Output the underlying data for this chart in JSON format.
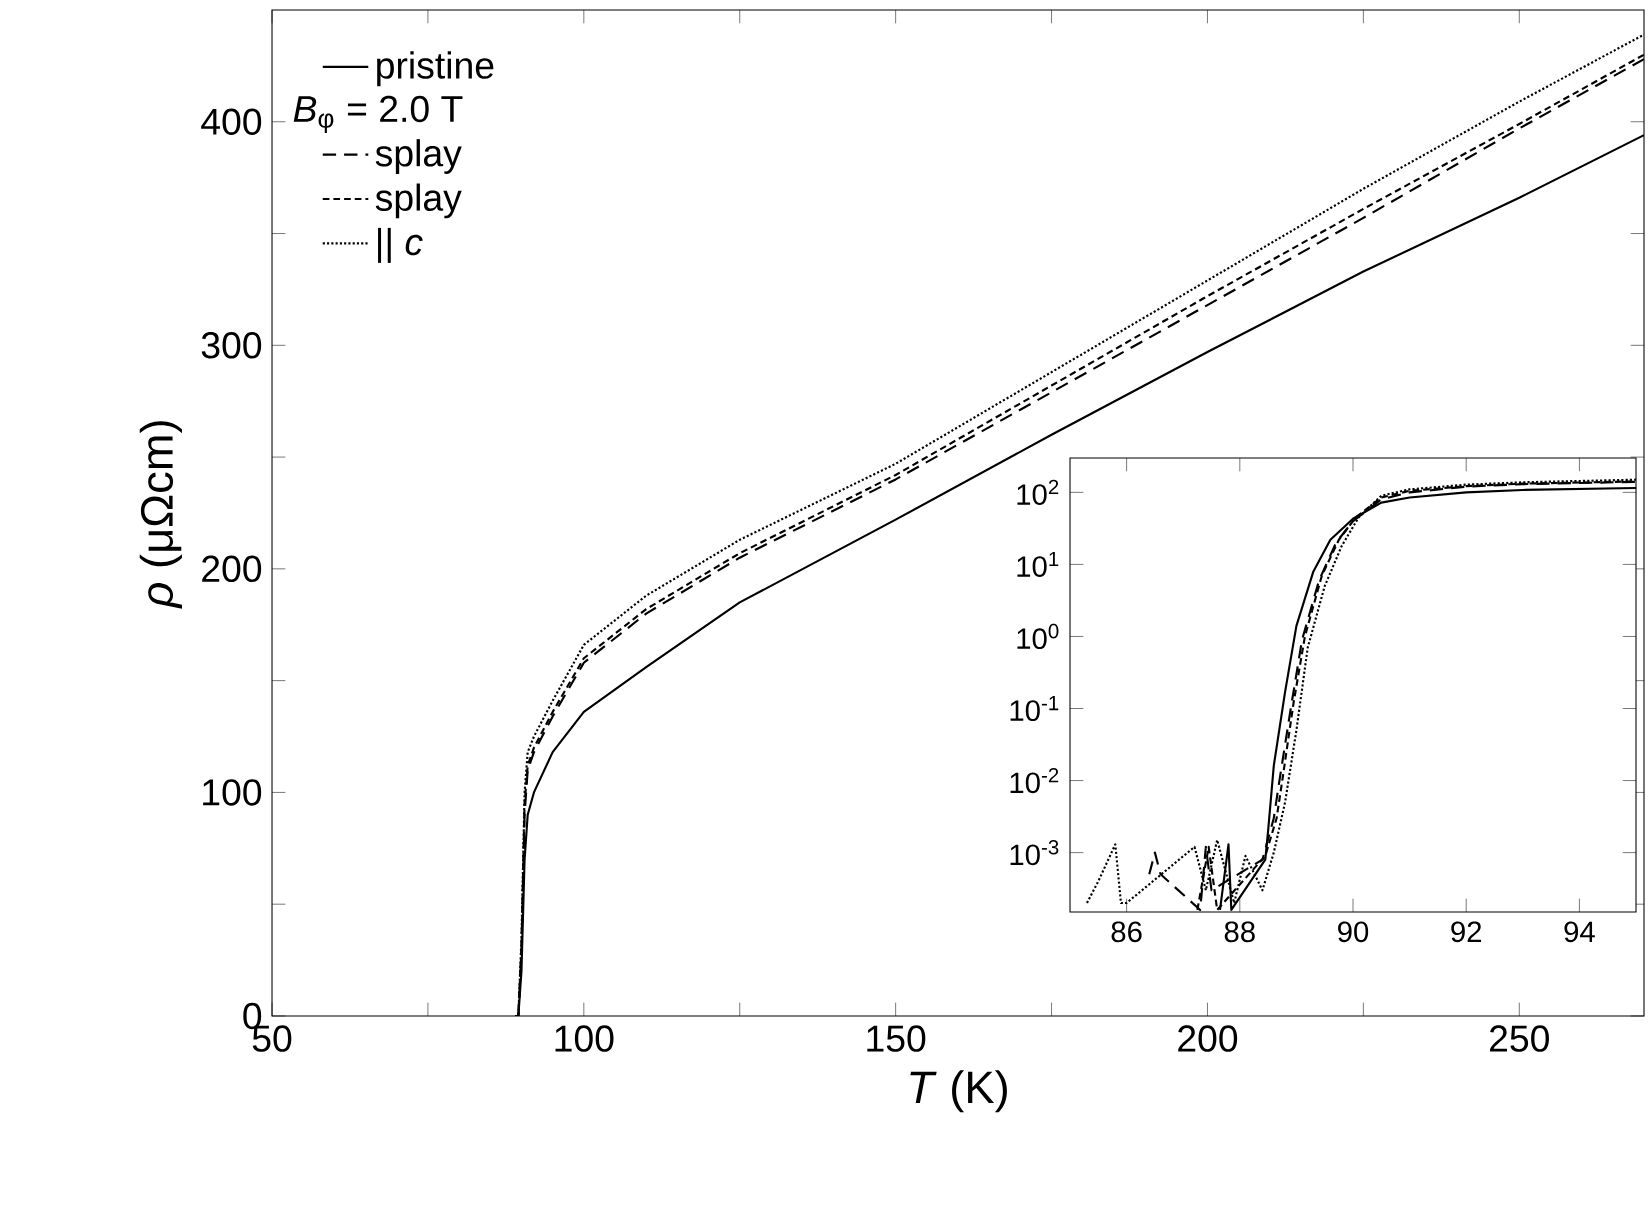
{
  "chart_data": [
    {
      "type": "line",
      "xlabel": "*T* (K)",
      "ylabel": "*ρ* (μΩcm)",
      "legend": "top left",
      "legend_title": "*B*$_{φ}$ = 2.0 T",
      "marker": "none",
      "xlim": [
        50,
        270
      ],
      "ylim": [
        0,
        450
      ],
      "xticks": [
        50,
        {
          "value": 75,
          "label": null
        },
        100,
        {
          "value": 125,
          "label": null
        },
        150,
        {
          "value": 175,
          "label": null
        },
        200,
        {
          "value": 225,
          "label": null
        },
        250
      ],
      "yticks": [
        0,
        {
          "value": 50,
          "label": null
        },
        100,
        {
          "value": 150,
          "label": null
        },
        200,
        {
          "value": 250,
          "label": null
        },
        300,
        {
          "value": 350,
          "label": null
        },
        400
      ],
      "x": [
        89,
        89.5,
        90,
        90.5,
        91,
        92,
        95,
        100,
        110,
        125,
        150,
        175,
        200,
        225,
        250,
        270
      ],
      "series": [
        {
          "name": "pristine",
          "color": "#000000",
          "line_style": "solid",
          "values": [
            0,
            0,
            20,
            70,
            90,
            100,
            118,
            136,
            156,
            185,
            222,
            260,
            297,
            333,
            366,
            394
          ]
        },
        {
          "name": "splay",
          "color": "#000000",
          "line_style": "dashed",
          "values": [
            0,
            0,
            30,
            90,
            110,
            118,
            134,
            158,
            180,
            205,
            240,
            279,
            318,
            357,
            397,
            428
          ]
        },
        {
          "name": "splay",
          "color": "#000000",
          "line_style": "dashed",
          "values": [
            0,
            0,
            30,
            95,
            112,
            120,
            136,
            160,
            182,
            207,
            242,
            282,
            322,
            361,
            399,
            430
          ]
        },
        {
          "name": "|| *c*",
          "color": "#000000",
          "line_style": "dotted",
          "values": [
            0,
            0,
            35,
            100,
            118,
            125,
            141,
            166,
            188,
            213,
            247,
            288,
            329,
            370,
            409,
            439
          ]
        }
      ]
    },
    {
      "type": "line",
      "log": "y",
      "marker": "none",
      "xlim": [
        85,
        95
      ],
      "ylim": [
        0.00015,
        300
      ],
      "xticks": [
        86,
        88,
        90,
        92,
        94
      ],
      "yticks": [
        {
          "value": 0.001,
          "label": "10$^{-3}$"
        },
        {
          "value": 0.01,
          "label": "10$^{-2}$"
        },
        {
          "value": 0.1,
          "label": "10$^{-1}$"
        },
        {
          "value": 1,
          "label": "10$^{0}$"
        },
        {
          "value": 10,
          "label": "10$^{1}$"
        },
        {
          "value": 100,
          "label": "10$^{2}$"
        }
      ],
      "series": [
        {
          "color": "#000000",
          "line_style": "solid",
          "x": [
            87.65,
            87.8,
            87.85,
            88.45,
            88.5,
            88.6,
            88.8,
            89,
            89.3,
            89.6,
            90,
            90.5,
            91,
            92,
            93,
            95
          ],
          "values": [
            0.00016,
            0.0013,
            0.00016,
            0.0008,
            0.002,
            0.016,
            0.17,
            1.4,
            8,
            22,
            43,
            72,
            85,
            100,
            108,
            115
          ]
        },
        {
          "color": "#000000",
          "line_style": "dashed",
          "x": [
            86.4,
            86.5,
            86.6,
            87.3,
            87.4,
            87.5,
            88.4,
            88.6,
            88.7,
            88.9,
            89.1,
            89.4,
            89.7,
            90,
            90.5,
            91,
            92,
            93,
            95
          ],
          "values": [
            0.0005,
            0.001,
            0.0005,
            0.00016,
            0.0012,
            0.0003,
            0.0008,
            0.003,
            0.01,
            0.1,
            0.9,
            6,
            20,
            40,
            80,
            100,
            120,
            130,
            140
          ]
        },
        {
          "color": "#000000",
          "line_style": "dashed",
          "x": [
            87.25,
            87.45,
            87.6,
            88.45,
            88.65,
            88.75,
            88.95,
            89.15,
            89.45,
            89.75,
            90.05,
            90.5,
            91,
            92,
            93,
            95
          ],
          "values": [
            0.00016,
            0.0012,
            0.00016,
            0.0009,
            0.003,
            0.01,
            0.12,
            1,
            7,
            22,
            45,
            85,
            105,
            122,
            132,
            142
          ]
        },
        {
          "color": "#000000",
          "line_style": "dotted",
          "x": [
            85.3,
            85.5,
            85.8,
            85.9,
            86.0,
            87.2,
            87.4,
            87.6,
            87.9,
            88.1,
            88.4,
            88.6,
            88.8,
            89,
            89.2,
            89.5,
            89.8,
            90.1,
            90.5,
            91,
            92,
            93,
            95
          ],
          "values": [
            0.0002,
            0.0004,
            0.0013,
            0.0002,
            0.0002,
            0.0012,
            0.0003,
            0.0015,
            0.0002,
            0.0009,
            0.0003,
            0.001,
            0.005,
            0.05,
            0.7,
            5,
            18,
            45,
            90,
            110,
            128,
            138,
            150
          ]
        }
      ]
    }
  ]
}
